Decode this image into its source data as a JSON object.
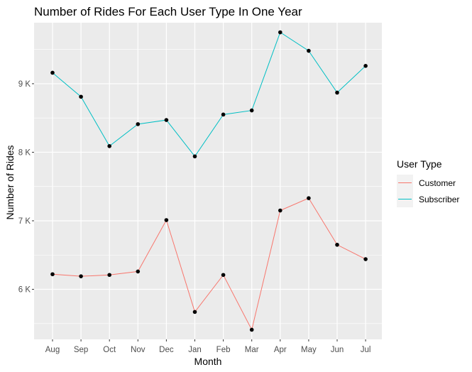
{
  "chart_data": {
    "type": "line",
    "title": "Number of Rides For Each User Type In One Year",
    "xlabel": "Month",
    "ylabel": "Number of Rides",
    "categories": [
      "Aug",
      "Sep",
      "Oct",
      "Nov",
      "Dec",
      "Jan",
      "Feb",
      "Mar",
      "Apr",
      "May",
      "Jun",
      "Jul"
    ],
    "series": [
      {
        "name": "Customer",
        "color": "#F8766D",
        "values": [
          6220,
          6190,
          6210,
          6260,
          7010,
          5670,
          6210,
          5410,
          7150,
          7330,
          6650,
          6440
        ]
      },
      {
        "name": "Subscriber",
        "color": "#00BFC4",
        "values": [
          9160,
          8810,
          8090,
          8410,
          8470,
          7940,
          8550,
          8610,
          9750,
          9480,
          8870,
          9260
        ]
      }
    ],
    "ylim": [
      5270,
      9890
    ],
    "yticks": [
      6000,
      7000,
      8000,
      9000
    ],
    "ytick_labels": [
      "6 K",
      "7 K",
      "8 K",
      "9 K"
    ],
    "grid": true,
    "legend": {
      "title": "User Type",
      "position": "right",
      "entries": [
        "Customer",
        "Subscriber"
      ]
    },
    "colors": {
      "panel_background": "#EBEBEB",
      "grid": "#FFFFFF",
      "point": "#000000"
    }
  }
}
